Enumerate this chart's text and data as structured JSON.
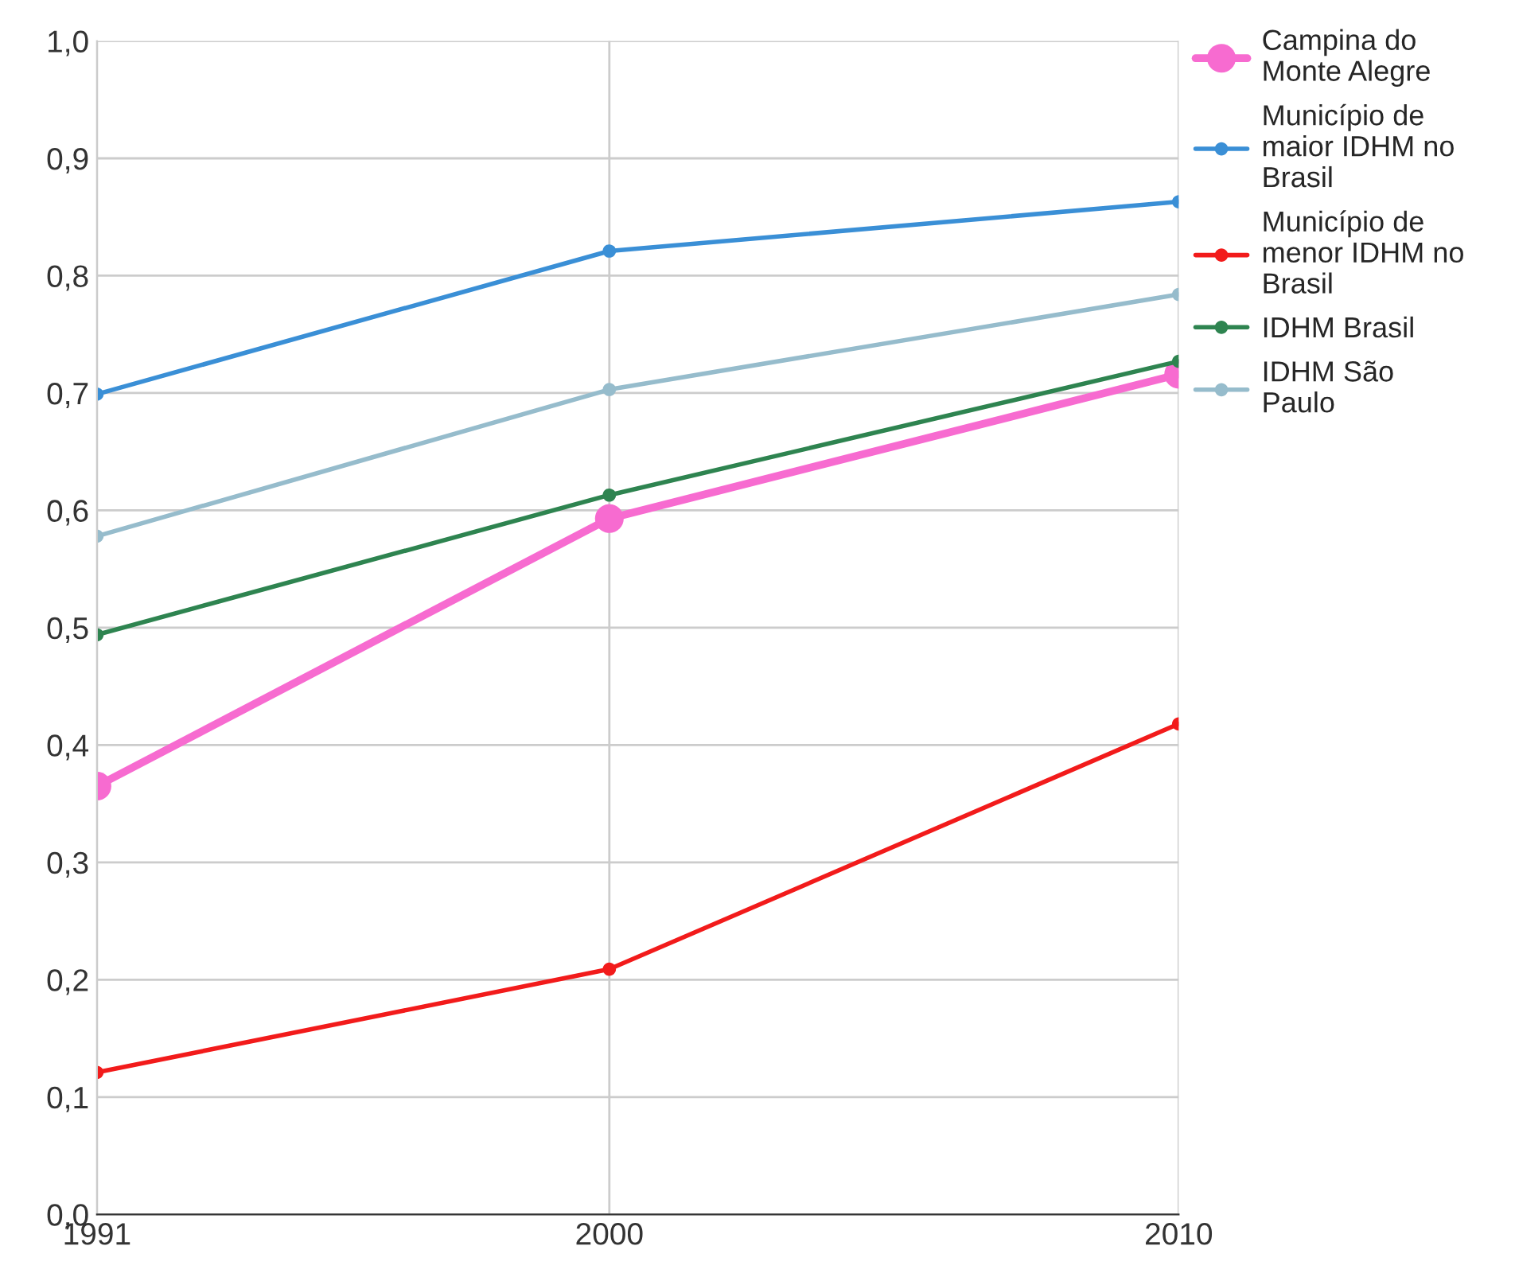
{
  "chart_data": {
    "type": "line",
    "x": [
      1991,
      2000,
      2010
    ],
    "series": [
      {
        "name": "Campina do Monte Alegre",
        "color": "#f76bd0",
        "values": [
          0.365,
          0.593,
          0.716
        ]
      },
      {
        "name": "Município de maior IDHM no Brasil",
        "color": "#3a8fd6",
        "values": [
          0.699,
          0.821,
          0.863
        ]
      },
      {
        "name": "Município de menor IDHM no Brasil",
        "color": "#f21b1b",
        "values": [
          0.121,
          0.209,
          0.418
        ]
      },
      {
        "name": "IDHM Brasil",
        "color": "#2e8450",
        "values": [
          0.494,
          0.613,
          0.727
        ]
      },
      {
        "name": "IDHM São Paulo",
        "color": "#96bccc",
        "values": [
          0.578,
          0.703,
          0.784
        ]
      }
    ],
    "xlim": [
      1991,
      2010
    ],
    "xticks": [
      1991,
      2000,
      2010
    ],
    "ylim": [
      0,
      1
    ],
    "yticks": [
      {
        "value": 0,
        "label": "0,0"
      },
      {
        "value": 0.1,
        "label": "0,1"
      },
      {
        "value": 0.2,
        "label": "0,2"
      },
      {
        "value": 0.3,
        "label": "0,3"
      },
      {
        "value": 0.4,
        "label": "0,4"
      },
      {
        "value": 0.5,
        "label": "0,5"
      },
      {
        "value": 0.6,
        "label": "0,6"
      },
      {
        "value": 0.7,
        "label": "0,7"
      },
      {
        "value": 0.8,
        "label": "0,8"
      },
      {
        "value": 0.9,
        "label": "0,9"
      },
      {
        "value": 1,
        "label": "1,0"
      }
    ],
    "grid": true,
    "legend": "right",
    "marker": "circle",
    "line_style": "solid"
  }
}
